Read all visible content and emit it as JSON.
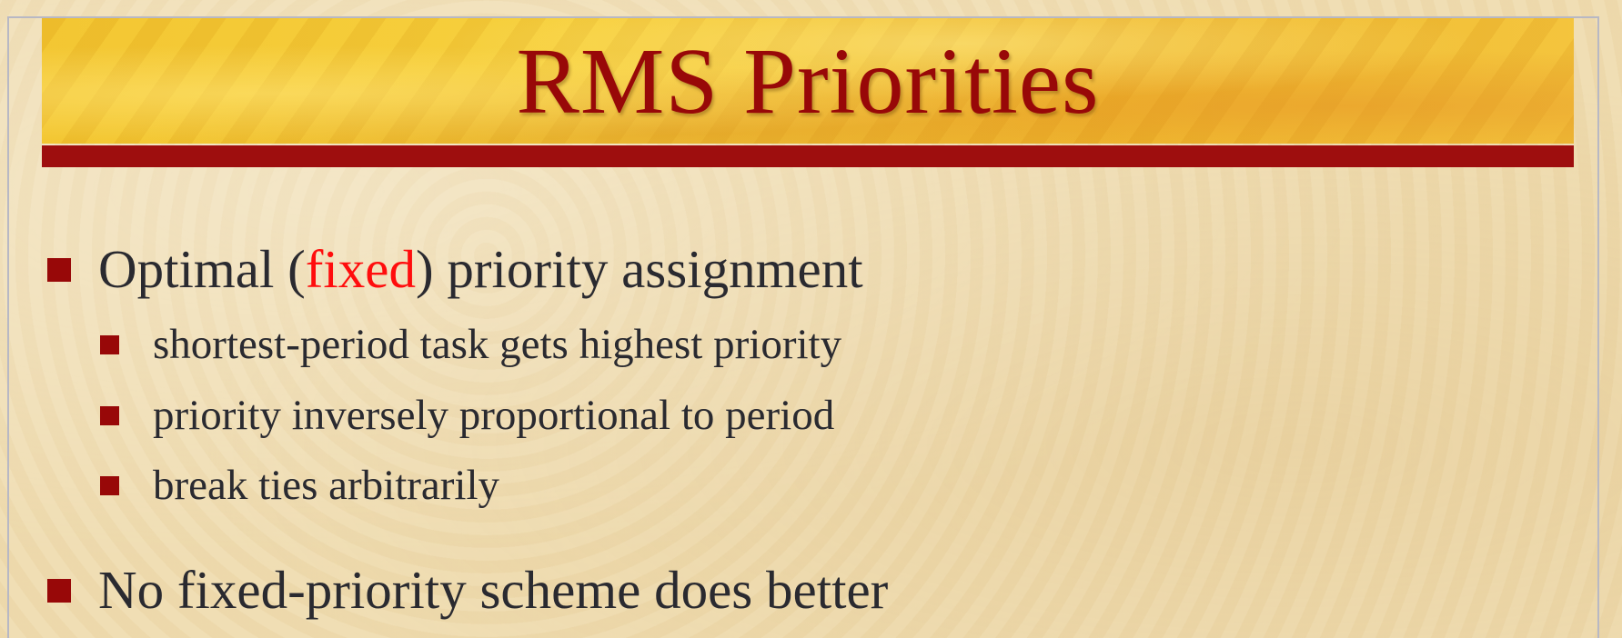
{
  "slide": {
    "title": "RMS Priorities",
    "bullets": [
      {
        "prefix": "Optimal (",
        "highlight": "fixed",
        "suffix": ") priority assignment",
        "sub": [
          "shortest-period task gets highest priority",
          "priority inversely proportional to period",
          "break ties arbitrarily"
        ]
      },
      {
        "text": "No fixed-priority scheme does better"
      }
    ]
  },
  "colors": {
    "title": "#980808",
    "bullet_marker": "#980808",
    "highlight": "#ff0d0d",
    "body_text": "#2a2a30",
    "banner": "#f2c42e",
    "background": "#efdcb0"
  }
}
